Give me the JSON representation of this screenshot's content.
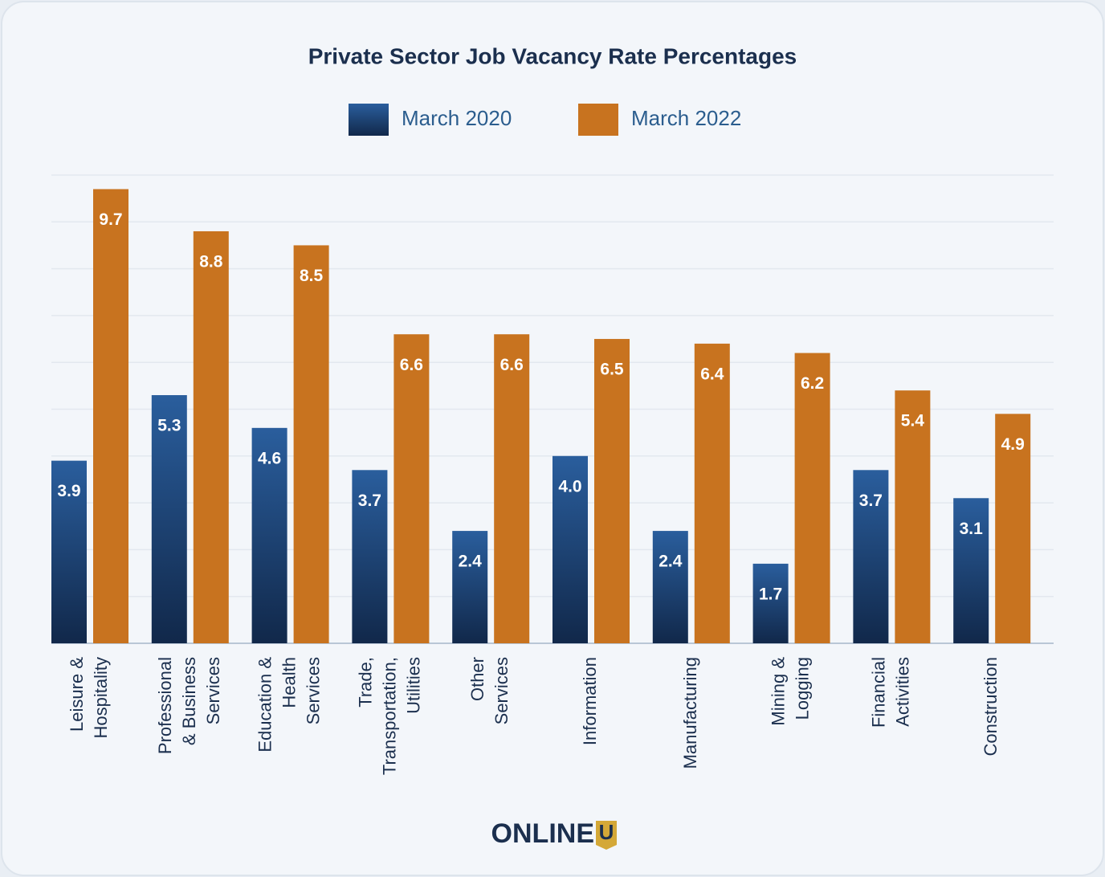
{
  "chart_data": {
    "type": "bar",
    "title": "Private Sector Job Vacancy Rate Percentages",
    "categories": [
      "Leisure &\nHospitality",
      "Professional\n& Business\nServices",
      "Education &\nHealth\nServices",
      "Trade,\nTransportation,\nUtilities",
      "Other\nServices",
      "Information",
      "Manufacturing",
      "Mining &\nLogging",
      "Financial\nActivities",
      "Construction"
    ],
    "series": [
      {
        "name": "March 2020",
        "color": "#1f4d85",
        "values": [
          3.9,
          5.3,
          4.6,
          3.7,
          2.4,
          4.0,
          2.4,
          1.7,
          3.7,
          3.1
        ],
        "value_labels": [
          "3.9",
          "5.3",
          "4.6",
          "3.7",
          "2.4",
          "4.0",
          "2.4",
          "1.7",
          "3.7",
          "3.1"
        ]
      },
      {
        "name": "March 2022",
        "color": "#c8731f",
        "values": [
          9.7,
          8.8,
          8.5,
          6.6,
          6.6,
          6.5,
          6.4,
          6.2,
          5.4,
          4.9
        ],
        "value_labels": [
          "9.7",
          "8.8",
          "8.5",
          "6.6",
          "6.6",
          "6.5",
          "6.4",
          "6.2",
          "5.4",
          "4.9"
        ]
      }
    ],
    "ylim": [
      0,
      10
    ],
    "yticks": [
      0,
      1,
      2,
      3,
      4,
      5,
      6,
      7,
      8,
      9,
      10
    ],
    "grid": true,
    "legend": "top"
  },
  "logo": {
    "text": "ONLINE",
    "badge": "U"
  }
}
